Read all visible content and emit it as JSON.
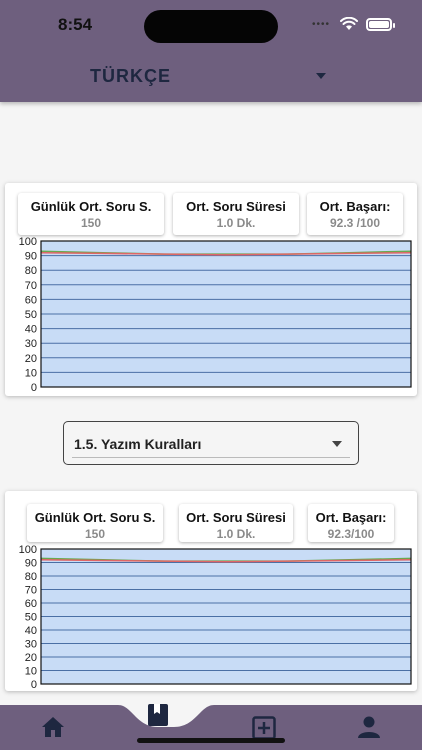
{
  "status_bar": {
    "time": "8:54"
  },
  "header": {
    "selected_language": "TÜRKÇE"
  },
  "cards": [
    {
      "stats": [
        {
          "title": "Günlük Ort. Soru S.",
          "value": "150"
        },
        {
          "title": "Ort. Soru Süresi",
          "value": "1.0 Dk."
        },
        {
          "title": "Ort. Başarı:",
          "value": "92.3 /100"
        }
      ]
    },
    {
      "stats": [
        {
          "title": "Günlük Ort. Soru S.",
          "value": "150"
        },
        {
          "title": "Ort. Soru Süresi",
          "value": "1.0 Dk."
        },
        {
          "title": "Ort. Başarı:",
          "value": "92.3/100"
        }
      ]
    }
  ],
  "subtopic_select": {
    "selected": "1.5. Yazım Kuralları"
  },
  "chart_data": [
    {
      "type": "area",
      "y_ticks": [
        0,
        10,
        20,
        30,
        40,
        50,
        60,
        70,
        80,
        90,
        100
      ],
      "ylim": [
        0,
        100
      ],
      "grid": true,
      "fill_color": "#c8dcf6",
      "series": [
        {
          "values": [
            93,
            92,
            91,
            91,
            91,
            92,
            93
          ],
          "color": "#6aa84f"
        },
        {
          "values": [
            92,
            91.5,
            91,
            90.5,
            91,
            91.5,
            92
          ],
          "color": "#e06666"
        }
      ]
    },
    {
      "type": "area",
      "y_ticks": [
        0,
        10,
        20,
        30,
        40,
        50,
        60,
        70,
        80,
        90,
        100
      ],
      "ylim": [
        0,
        100
      ],
      "grid": true,
      "fill_color": "#c8dcf6",
      "series": [
        {
          "values": [
            93,
            92,
            91,
            91,
            91,
            92,
            93
          ],
          "color": "#6aa84f"
        },
        {
          "values": [
            92,
            91.5,
            91,
            90.5,
            91,
            91.5,
            92
          ],
          "color": "#e06666"
        }
      ]
    }
  ],
  "bottom_nav": {
    "items": [
      {
        "icon": "home-icon"
      },
      {
        "icon": "book-icon",
        "active": true
      },
      {
        "icon": "add-box-icon"
      },
      {
        "icon": "person-icon"
      }
    ],
    "color": "#6e5f7e"
  }
}
